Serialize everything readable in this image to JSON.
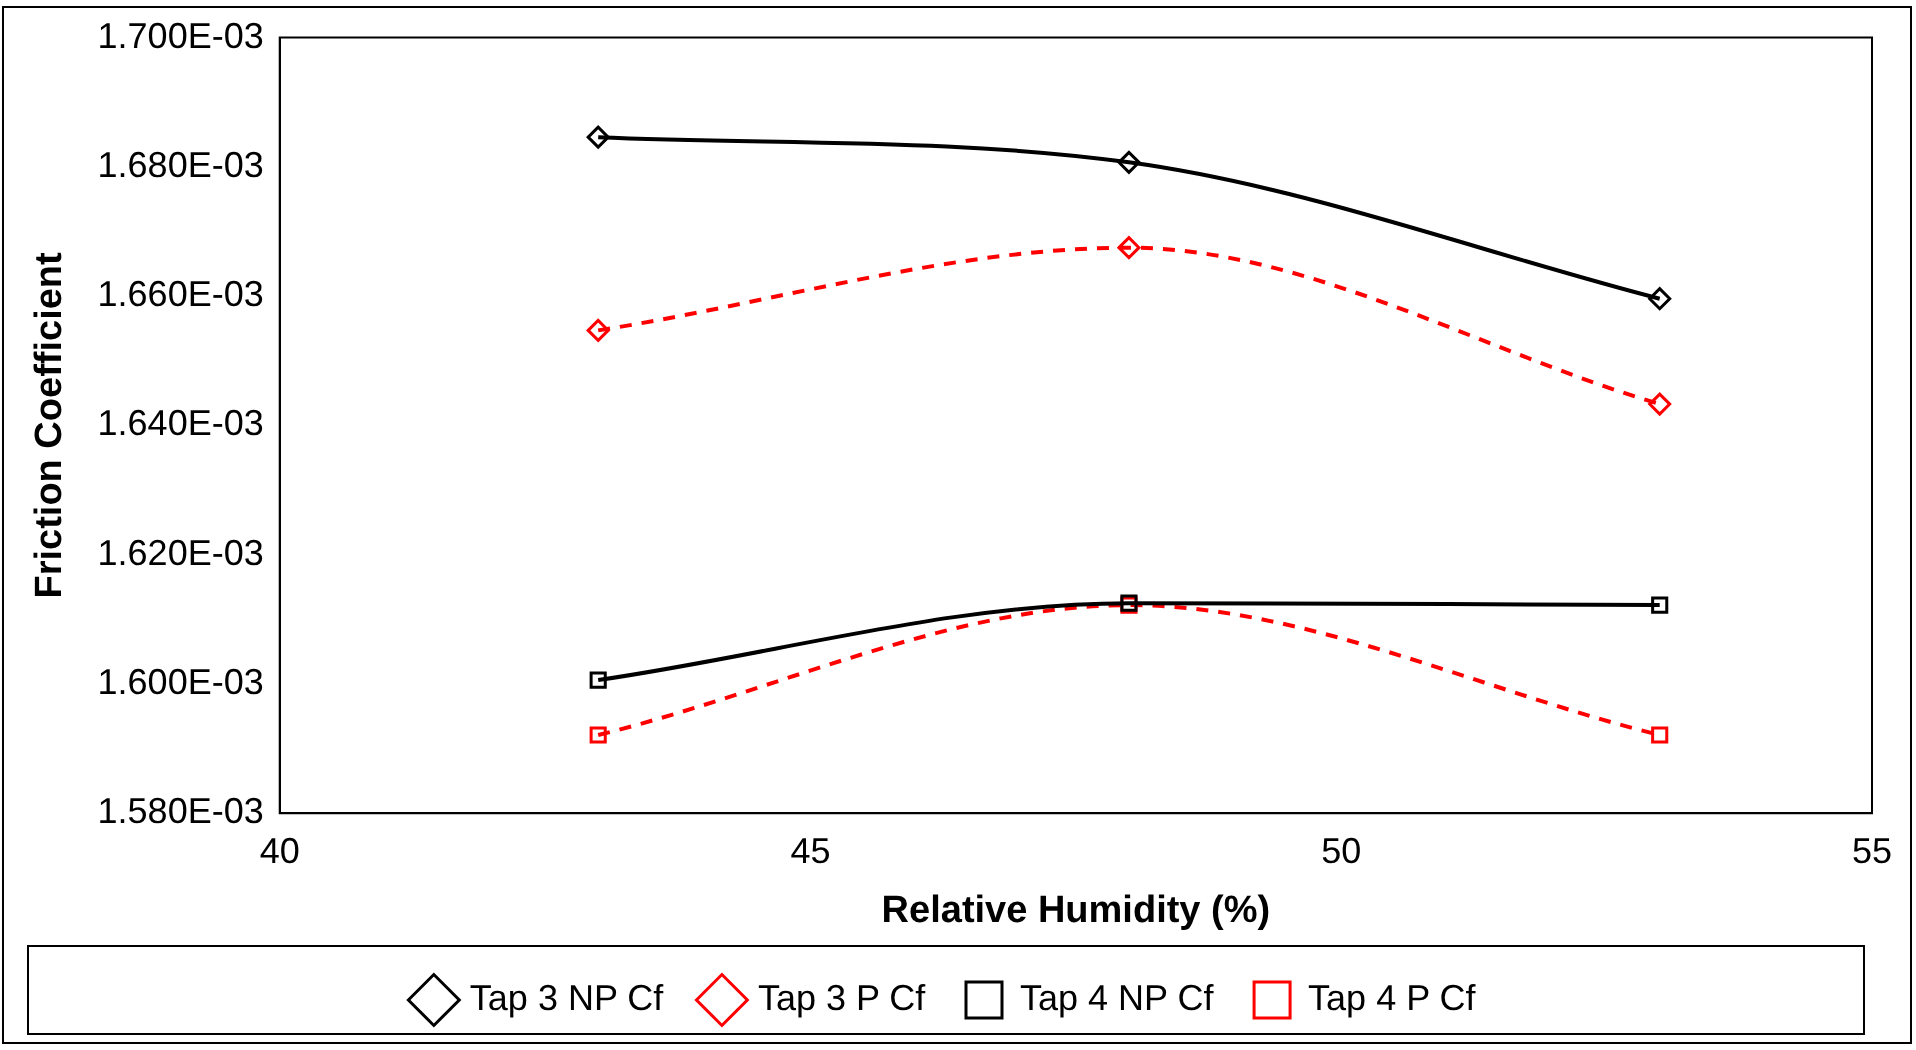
{
  "chart_data": {
    "type": "line",
    "xlabel": "Relative Humidity (%)",
    "ylabel": "Friction Coefficient",
    "xlim": [
      40,
      55
    ],
    "xticks": [
      40,
      45,
      50,
      55
    ],
    "ylim": [
      0.00158,
      0.0017
    ],
    "yticks": [
      {
        "value": 0.00158,
        "label": "1.580E-03"
      },
      {
        "value": 0.0016,
        "label": "1.600E-03"
      },
      {
        "value": 0.00162,
        "label": "1.620E-03"
      },
      {
        "value": 0.00164,
        "label": "1.640E-03"
      },
      {
        "value": 0.00166,
        "label": "1.660E-03"
      },
      {
        "value": 0.00168,
        "label": "1.680E-03"
      },
      {
        "value": 0.0017,
        "label": "1.700E-03"
      }
    ],
    "grid": false,
    "legend": "bottom",
    "series": [
      {
        "name": "Tap 3 NP Cf",
        "color": "#000000",
        "marker": "diamond",
        "line_style": "solid",
        "x": [
          43,
          48,
          53
        ],
        "values": [
          0.0016846,
          0.0016807,
          0.0016596
        ]
      },
      {
        "name": "Tap 3 P Cf",
        "color": "#ff0000",
        "marker": "diamond",
        "line_style": "dashed",
        "x": [
          43,
          48,
          53
        ],
        "values": [
          0.0016547,
          0.0016675,
          0.0016433
        ]
      },
      {
        "name": "Tap 4 NP Cf",
        "color": "#000000",
        "marker": "square",
        "line_style": "solid",
        "x": [
          43,
          48,
          53
        ],
        "values": [
          0.0016006,
          0.0016125,
          0.0016122
        ]
      },
      {
        "name": "Tap 4 P Cf",
        "color": "#ff0000",
        "marker": "square",
        "line_style": "dashed",
        "x": [
          43,
          48,
          53
        ],
        "values": [
          0.0015921,
          0.0016122,
          0.0015921
        ]
      }
    ]
  }
}
